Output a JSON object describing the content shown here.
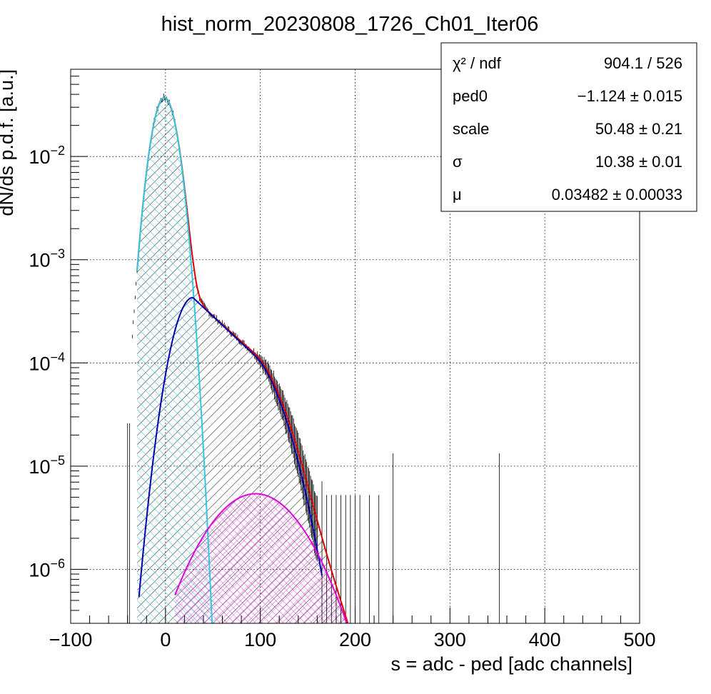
{
  "chart_data": {
    "type": "line",
    "title": "hist_norm_20230808_1726_Ch01_Iter06",
    "xlabel": "s = adc - ped [adc channels]",
    "ylabel": "dN/ds p.d.f. [a.u.]",
    "xlim": [
      -100,
      500
    ],
    "ylim": [
      3e-07,
      0.07
    ],
    "yscale": "log",
    "grid": true,
    "x_ticks": [
      -100,
      0,
      100,
      200,
      300,
      400,
      500
    ],
    "x_tick_labels": [
      "−100",
      "0",
      "100",
      "200",
      "300",
      "400",
      "500"
    ],
    "y_ticks": [
      1e-06,
      1e-05,
      0.0001,
      0.001,
      0.01
    ],
    "y_tick_labels": [
      {
        "base": "10",
        "exp": "−6"
      },
      {
        "base": "10",
        "exp": "−5"
      },
      {
        "base": "10",
        "exp": "−4"
      },
      {
        "base": "10",
        "exp": "−3"
      },
      {
        "base": "10",
        "exp": "−2"
      }
    ],
    "fit_params": {
      "ped0": -1.124,
      "scale": 50.48,
      "sigma": 10.38,
      "mu": 0.03482
    },
    "series": [
      {
        "role": "data",
        "color": "#000000",
        "x_range": [
          -40,
          360
        ]
      },
      {
        "role": "total-fit",
        "color": "#e00000"
      },
      {
        "role": "pedestal",
        "color": "#30c8e0"
      },
      {
        "role": "one-pe",
        "color": "#0000b0"
      },
      {
        "role": "two-pe",
        "color": "#e000e0"
      }
    ],
    "stats": [
      {
        "label": "χ² / ndf",
        "value": "904.1 / 526"
      },
      {
        "label": "ped0",
        "value": "−1.124 ± 0.015"
      },
      {
        "label": "scale",
        "value": "50.48 ± 0.21"
      },
      {
        "label": "σ",
        "value": "10.38 ± 0.01"
      },
      {
        "label": "μ",
        "value": "0.03482 ± 0.00033"
      }
    ]
  }
}
